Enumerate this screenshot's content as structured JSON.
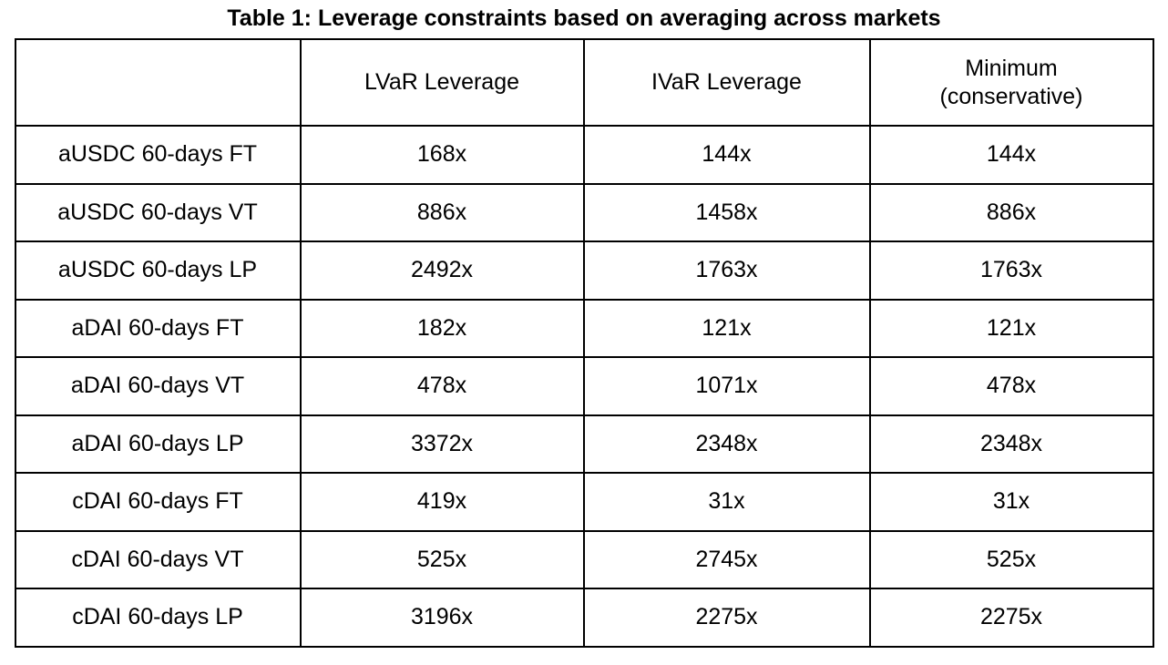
{
  "page": {
    "title": "Table 1: Leverage constraints based on averaging across markets",
    "background": "#ffffff",
    "text_color": "#000000",
    "border_color": "#000000"
  },
  "table": {
    "columns": {
      "row_header": "",
      "lvar": "LVaR Leverage",
      "ivar": "IVaR Leverage",
      "min": "Minimum\n(conservative)"
    },
    "rows": [
      {
        "label": "aUSDC 60-days FT",
        "lvar": "168x",
        "ivar": "144x",
        "min": "144x"
      },
      {
        "label": "aUSDC 60-days VT",
        "lvar": "886x",
        "ivar": "1458x",
        "min": "886x"
      },
      {
        "label": "aUSDC 60-days LP",
        "lvar": "2492x",
        "ivar": "1763x",
        "min": "1763x"
      },
      {
        "label": "aDAI 60-days FT",
        "lvar": "182x",
        "ivar": "121x",
        "min": "121x"
      },
      {
        "label": "aDAI 60-days VT",
        "lvar": "478x",
        "ivar": "1071x",
        "min": "478x"
      },
      {
        "label": "aDAI 60-days LP",
        "lvar": "3372x",
        "ivar": "2348x",
        "min": "2348x"
      },
      {
        "label": "cDAI 60-days FT",
        "lvar": "419x",
        "ivar": "31x",
        "min": "31x"
      },
      {
        "label": "cDAI 60-days VT",
        "lvar": "525x",
        "ivar": "2745x",
        "min": "525x"
      },
      {
        "label": "cDAI 60-days LP",
        "lvar": "3196x",
        "ivar": "2275x",
        "min": "2275x"
      }
    ]
  },
  "chart_data": {
    "type": "table",
    "title": "Table 1: Leverage constraints based on averaging across markets",
    "columns": [
      "",
      "LVaR Leverage",
      "IVaR Leverage",
      "Minimum (conservative)"
    ],
    "rows": [
      [
        "aUSDC 60-days FT",
        "168x",
        "144x",
        "144x"
      ],
      [
        "aUSDC 60-days VT",
        "886x",
        "1458x",
        "886x"
      ],
      [
        "aUSDC 60-days LP",
        "2492x",
        "1763x",
        "1763x"
      ],
      [
        "aDAI 60-days FT",
        "182x",
        "121x",
        "121x"
      ],
      [
        "aDAI 60-days VT",
        "478x",
        "1071x",
        "478x"
      ],
      [
        "aDAI 60-days LP",
        "3372x",
        "2348x",
        "2348x"
      ],
      [
        "cDAI 60-days FT",
        "419x",
        "31x",
        "31x"
      ],
      [
        "cDAI 60-days VT",
        "525x",
        "2745x",
        "525x"
      ],
      [
        "cDAI 60-days LP",
        "3196x",
        "2275x",
        "2275x"
      ]
    ]
  }
}
